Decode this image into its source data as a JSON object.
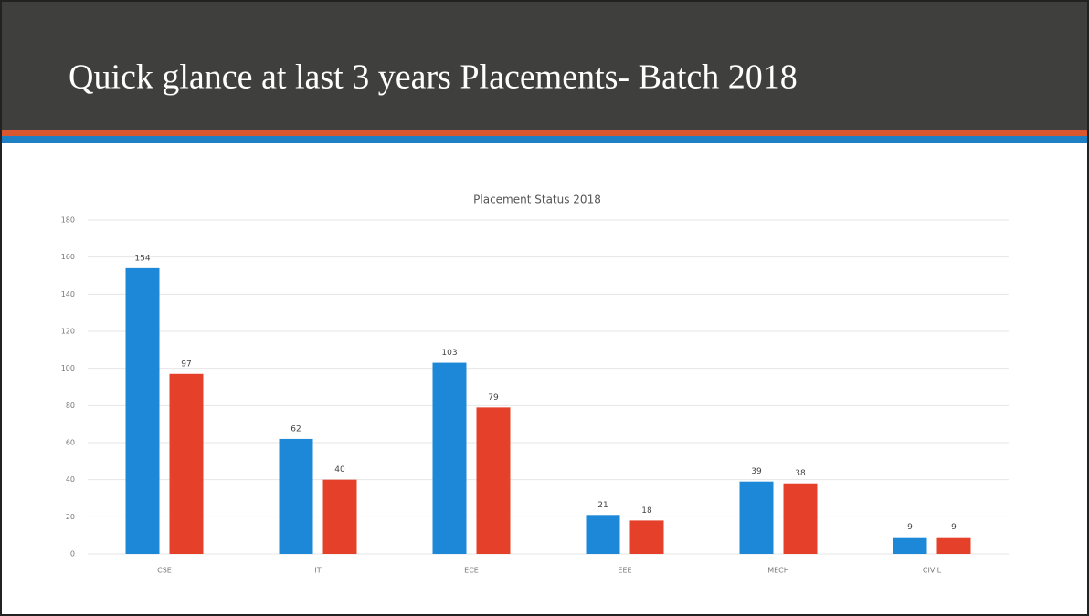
{
  "slide": {
    "title": "Quick glance at last 3 years Placements- Batch 2018"
  },
  "chart_data": {
    "type": "bar",
    "title": "Placement Status 2018",
    "categories": [
      "CSE",
      "IT",
      "ECE",
      "EEE",
      "MECH",
      "CIVIL"
    ],
    "series": [
      {
        "color": "#1e88d8",
        "values": [
          154,
          62,
          103,
          21,
          39,
          9
        ]
      },
      {
        "color": "#e5402a",
        "values": [
          97,
          40,
          79,
          18,
          38,
          9
        ]
      }
    ],
    "ylim": [
      0,
      180
    ],
    "yticks": [
      0,
      20,
      40,
      60,
      80,
      100,
      120,
      140,
      160,
      180
    ],
    "grid": true
  }
}
